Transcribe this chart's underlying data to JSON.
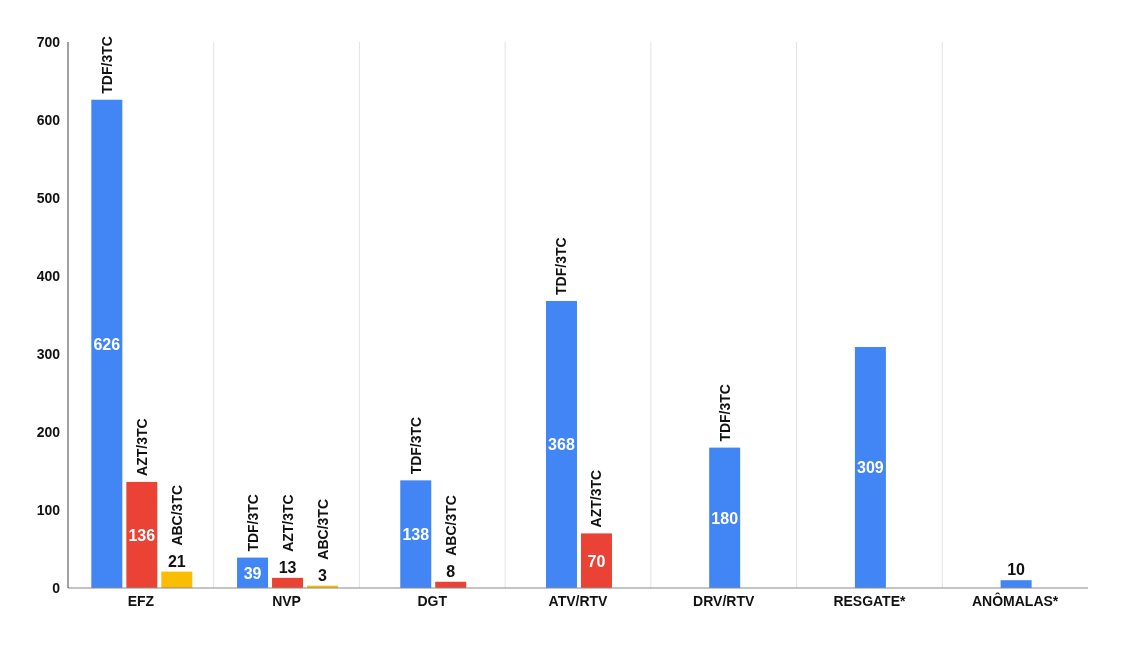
{
  "chart_data": {
    "type": "bar",
    "categories": [
      "EFZ",
      "NVP",
      "DGT",
      "ATV/RTV",
      "DRV/RTV",
      "RESGATE*",
      "ANÔMALAS*"
    ],
    "series": [
      {
        "name": "TDF/3TC",
        "color": "#4285f4",
        "values": [
          626,
          39,
          138,
          368,
          180,
          null,
          null
        ]
      },
      {
        "name": "AZT/3TC",
        "color": "#ea4335",
        "values": [
          136,
          13,
          null,
          70,
          null,
          null,
          null
        ]
      },
      {
        "name": "ABC/3TC",
        "color": "#fbbc04",
        "colors": [
          "#fbbc04",
          "#fbbc04",
          "#ea4335",
          null,
          null,
          null,
          null
        ],
        "values": [
          21,
          3,
          8,
          null,
          null,
          null,
          null
        ]
      },
      {
        "color": "#4285f4",
        "values": [
          null,
          null,
          null,
          null,
          null,
          309,
          10
        ]
      }
    ],
    "ylim": [
      0,
      700
    ],
    "yticks": [
      0,
      100,
      200,
      300,
      400,
      500,
      600,
      700
    ],
    "grid": "x",
    "data_labels": true
  }
}
